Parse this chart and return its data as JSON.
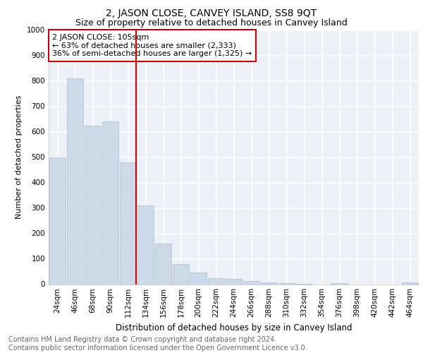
{
  "title": "2, JASON CLOSE, CANVEY ISLAND, SS8 9QT",
  "subtitle": "Size of property relative to detached houses in Canvey Island",
  "xlabel": "Distribution of detached houses by size in Canvey Island",
  "ylabel": "Number of detached properties",
  "categories": [
    "24sqm",
    "46sqm",
    "68sqm",
    "90sqm",
    "112sqm",
    "134sqm",
    "156sqm",
    "178sqm",
    "200sqm",
    "222sqm",
    "244sqm",
    "266sqm",
    "288sqm",
    "310sqm",
    "332sqm",
    "354sqm",
    "376sqm",
    "398sqm",
    "420sqm",
    "442sqm",
    "464sqm"
  ],
  "values": [
    500,
    810,
    625,
    640,
    480,
    310,
    160,
    80,
    45,
    25,
    22,
    13,
    8,
    5,
    2,
    0,
    4,
    0,
    0,
    0,
    8
  ],
  "bar_color": "#ccd9e8",
  "bar_edge_color": "#a8bfd0",
  "red_line_index": 4,
  "annotation_text": "2 JASON CLOSE: 105sqm\n← 63% of detached houses are smaller (2,333)\n36% of semi-detached houses are larger (1,325) →",
  "annotation_box_color": "#ffffff",
  "annotation_box_edge_color": "#cc0000",
  "red_line_color": "#cc0000",
  "ylim": [
    0,
    1000
  ],
  "yticks": [
    0,
    100,
    200,
    300,
    400,
    500,
    600,
    700,
    800,
    900,
    1000
  ],
  "background_color": "#edf1f7",
  "grid_color": "#ffffff",
  "footer_text": "Contains HM Land Registry data © Crown copyright and database right 2024.\nContains public sector information licensed under the Open Government Licence v3.0.",
  "title_fontsize": 10,
  "subtitle_fontsize": 9,
  "annotation_fontsize": 8,
  "footer_fontsize": 7,
  "ylabel_fontsize": 8,
  "xlabel_fontsize": 8.5,
  "tick_fontsize": 7.5
}
